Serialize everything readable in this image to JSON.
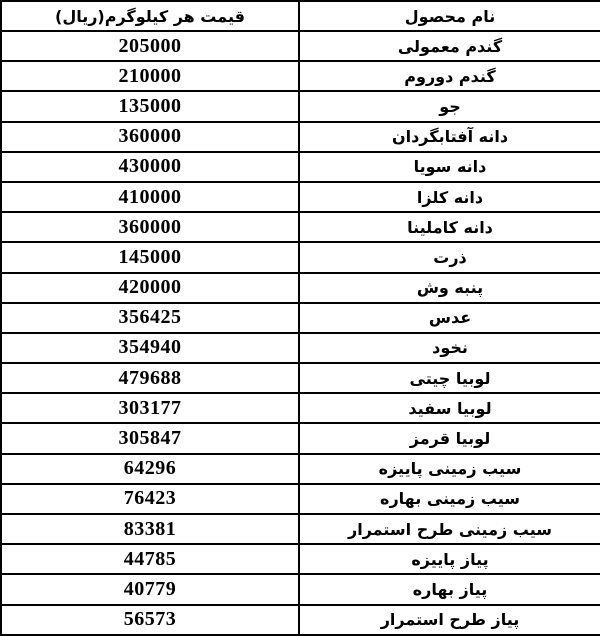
{
  "colors": {
    "border": "#000000",
    "text": "#000000",
    "background": "#ffffff"
  },
  "table": {
    "header": {
      "price_label": "قیمت هر کیلوگرم(ریال)",
      "name_label": "نام محصول"
    },
    "rows": [
      {
        "name": "گندم معمولی",
        "price": "205000"
      },
      {
        "name": "گندم دوروم",
        "price": "210000"
      },
      {
        "name": "جو",
        "price": "135000"
      },
      {
        "name": "دانه آفتابگردان",
        "price": "360000"
      },
      {
        "name": "دانه سویا",
        "price": "430000"
      },
      {
        "name": "دانه کلزا",
        "price": "410000"
      },
      {
        "name": "دانه کاملینا",
        "price": "360000"
      },
      {
        "name": "ذرت",
        "price": "145000"
      },
      {
        "name": "پنبه وش",
        "price": "420000"
      },
      {
        "name": "عدس",
        "price": "356425"
      },
      {
        "name": "نخود",
        "price": "354940"
      },
      {
        "name": "لوبیا چیتی",
        "price": "479688"
      },
      {
        "name": "لوبیا سفید",
        "price": "303177"
      },
      {
        "name": "لوبیا قرمز",
        "price": "305847"
      },
      {
        "name": "سیب زمینی پاییزه",
        "price": "64296"
      },
      {
        "name": "سیب زمینی بهاره",
        "price": "76423"
      },
      {
        "name": "سیب زمینی طرح استمرار",
        "price": "83381"
      },
      {
        "name": "پیاز پاییزه",
        "price": "44785"
      },
      {
        "name": "پیاز بهاره",
        "price": "40779"
      },
      {
        "name": "پیاز طرح استمرار",
        "price": "56573"
      }
    ]
  }
}
